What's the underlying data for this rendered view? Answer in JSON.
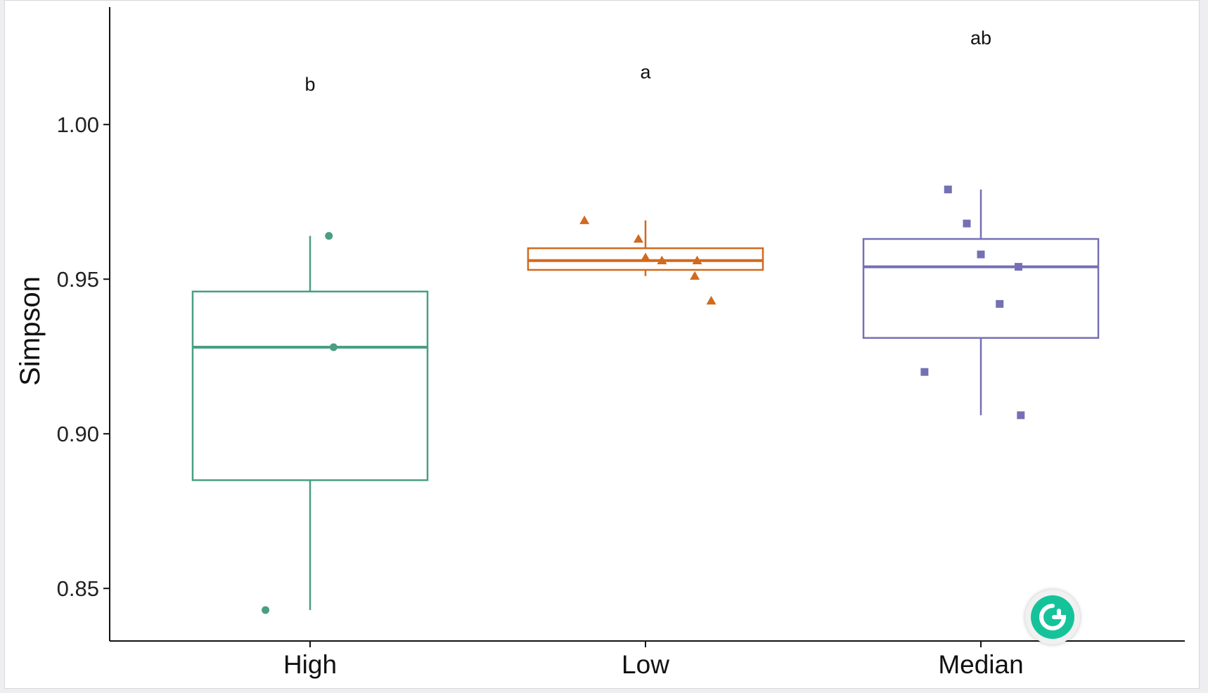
{
  "chart_data": {
    "type": "box",
    "ylabel": "Simpson",
    "xlabel": "",
    "ylim": [
      0.833,
      1.038
    ],
    "yticks": [
      0.85,
      0.9,
      0.95,
      1.0
    ],
    "ytick_labels": [
      "0.85",
      "0.90",
      "0.95",
      "1.00"
    ],
    "grid": false,
    "legend": "none",
    "groups": [
      {
        "category": "High",
        "color": "#4a9e82",
        "marker": "circle",
        "whisker_low": 0.843,
        "q1": 0.885,
        "median": 0.928,
        "q3": 0.946,
        "whisker_high": 0.964,
        "points": [
          {
            "x_jitter": -0.19,
            "y": 0.843
          },
          {
            "x_jitter": 0.08,
            "y": 0.964
          },
          {
            "x_jitter": 0.1,
            "y": 0.928
          }
        ],
        "letter": "b",
        "letter_y": 1.013
      },
      {
        "category": "Low",
        "color": "#d2691e",
        "marker": "triangle",
        "whisker_low": 0.951,
        "q1": 0.953,
        "median": 0.956,
        "q3": 0.96,
        "whisker_high": 0.969,
        "points": [
          {
            "x_jitter": -0.26,
            "y": 0.969
          },
          {
            "x_jitter": -0.03,
            "y": 0.963
          },
          {
            "x_jitter": 0.0,
            "y": 0.957
          },
          {
            "x_jitter": 0.07,
            "y": 0.956
          },
          {
            "x_jitter": 0.22,
            "y": 0.956
          },
          {
            "x_jitter": 0.21,
            "y": 0.951
          },
          {
            "x_jitter": 0.28,
            "y": 0.943
          }
        ],
        "letter": "a",
        "letter_y": 1.017
      },
      {
        "category": "Median",
        "color": "#7570b3",
        "marker": "square",
        "whisker_low": 0.906,
        "q1": 0.931,
        "median": 0.954,
        "q3": 0.963,
        "whisker_high": 0.979,
        "points": [
          {
            "x_jitter": -0.14,
            "y": 0.979
          },
          {
            "x_jitter": -0.06,
            "y": 0.968
          },
          {
            "x_jitter": 0.0,
            "y": 0.958
          },
          {
            "x_jitter": 0.16,
            "y": 0.954
          },
          {
            "x_jitter": 0.08,
            "y": 0.942
          },
          {
            "x_jitter": -0.24,
            "y": 0.92
          },
          {
            "x_jitter": 0.17,
            "y": 0.906
          }
        ],
        "letter": "ab",
        "letter_y": 1.028
      }
    ]
  },
  "overlay": {
    "grammarly_button_icon": "grammarly-icon",
    "grammarly_color": "#15c39a"
  }
}
